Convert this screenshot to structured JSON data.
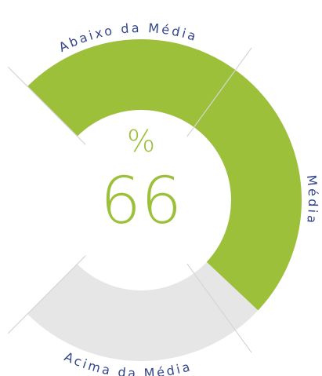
{
  "chart_data": {
    "type": "gauge",
    "value": 66,
    "unit": "%",
    "min": 0,
    "max": 100,
    "thresholds": [
      30,
      70
    ],
    "bands": [
      {
        "label": "Abaixo da Média"
      },
      {
        "label": "Média"
      },
      {
        "label": "Acima da Média"
      }
    ],
    "color": "#9dc03b",
    "track_color": "#e6e6e6",
    "divider_color": "#d6d6d6"
  }
}
